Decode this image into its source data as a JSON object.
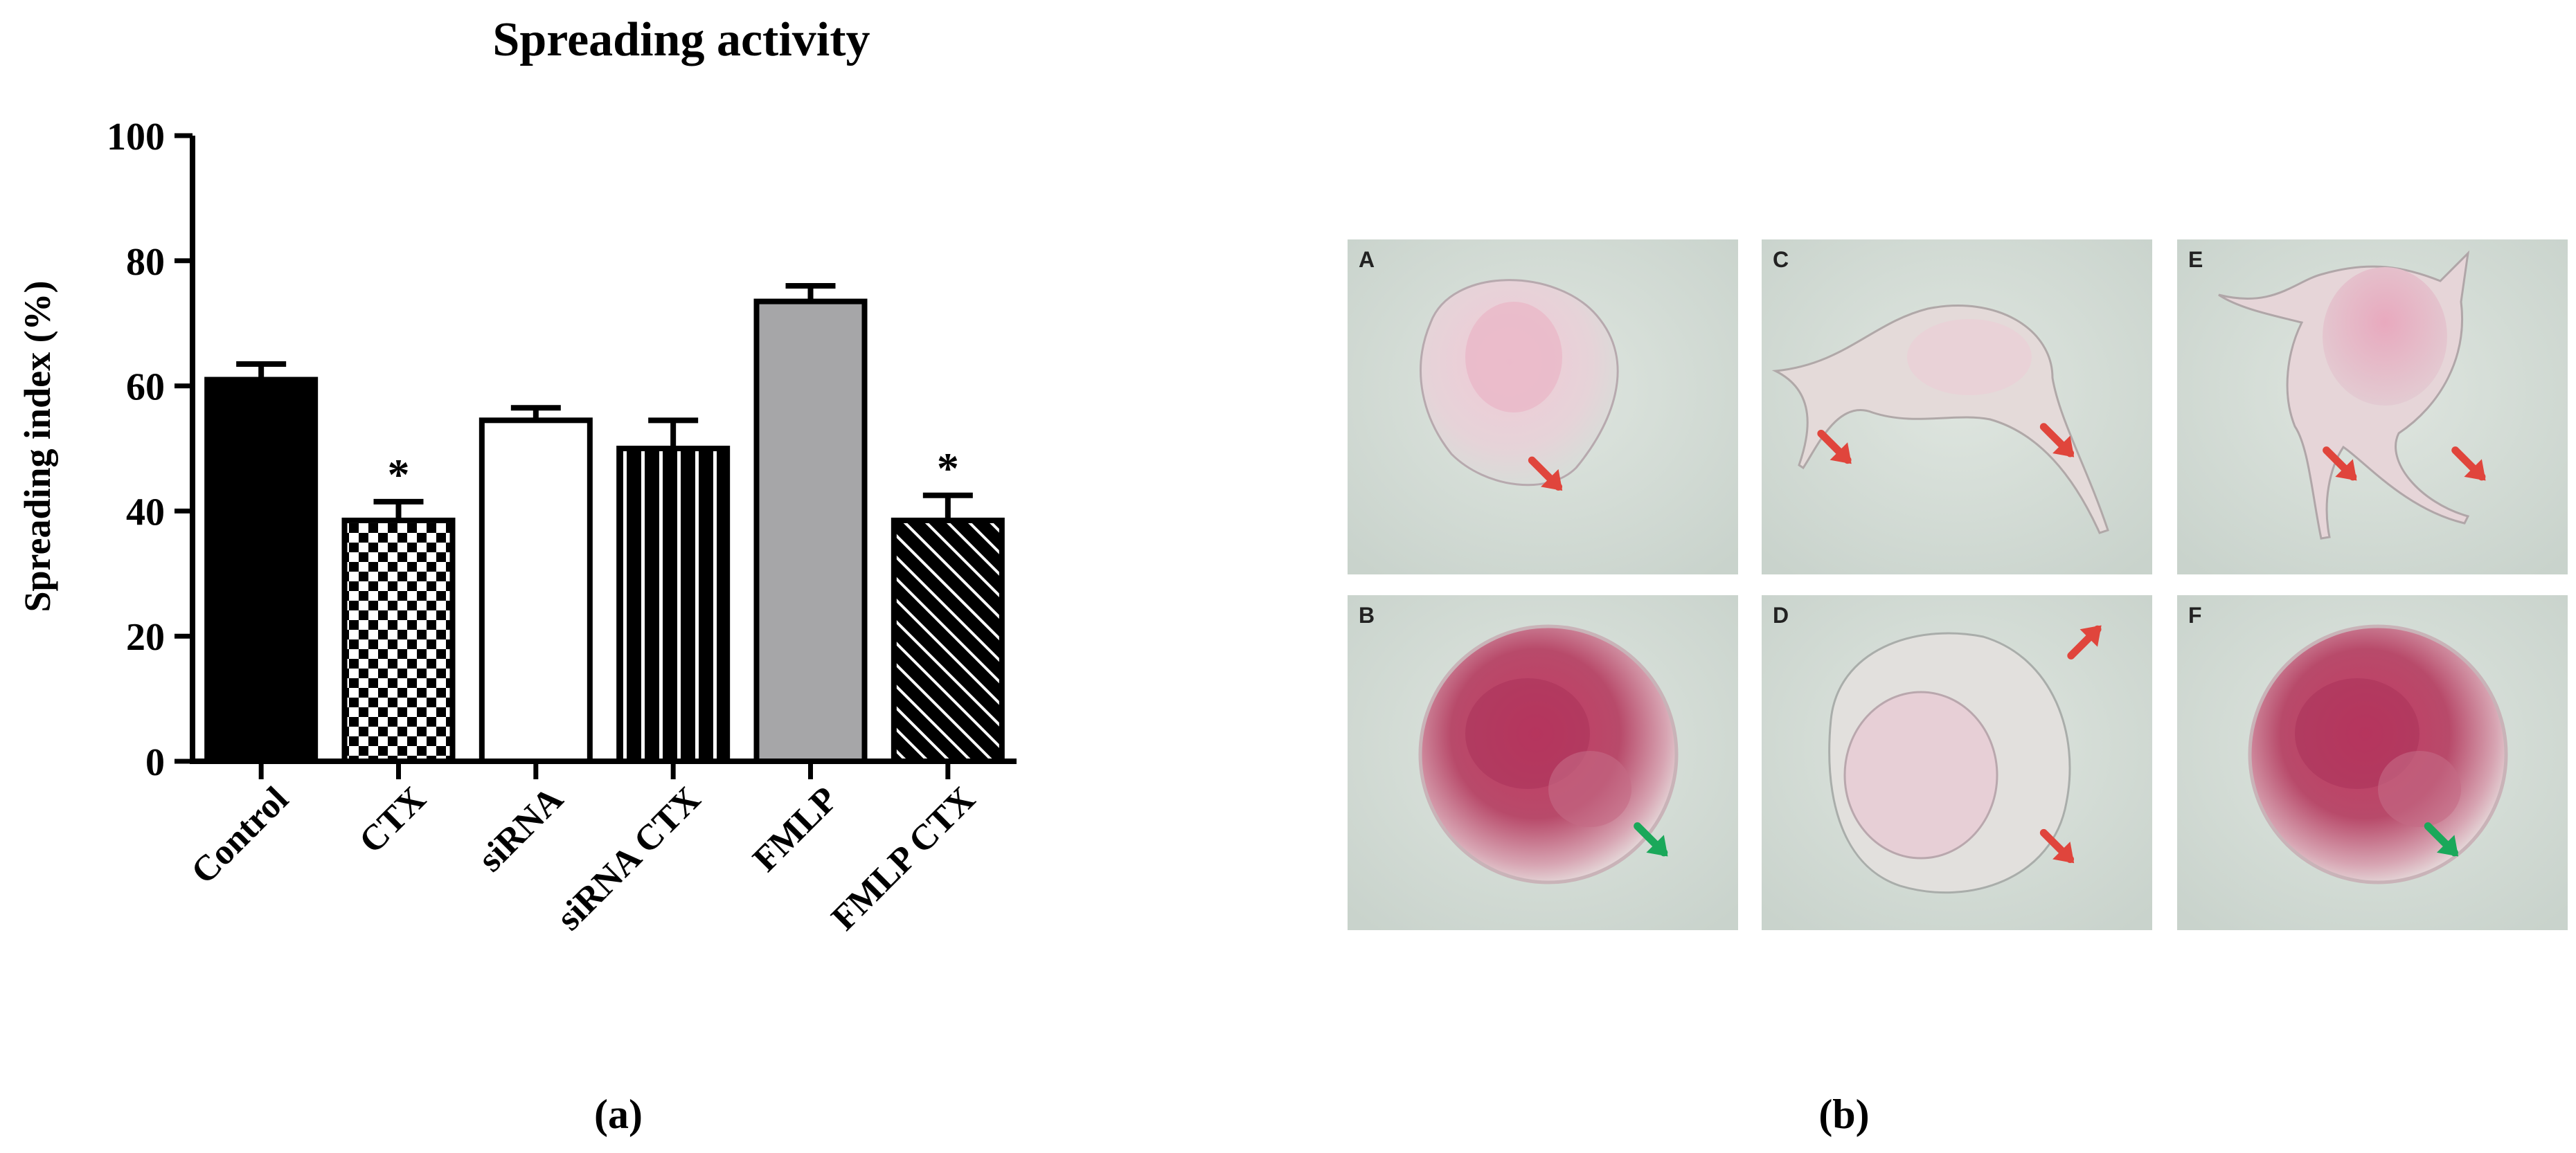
{
  "chart_data": {
    "type": "bar",
    "title": "Spreading activity",
    "ylabel": "Spreading index (%)",
    "xlabel": "",
    "ylim": [
      0,
      100
    ],
    "yticks": [
      0,
      20,
      40,
      60,
      80,
      100
    ],
    "categories": [
      "Control",
      "CTX",
      "siRNA",
      "siRNA CTX",
      "FMLP",
      "FMLP CTX"
    ],
    "values": [
      61,
      38.5,
      54.5,
      50,
      73.5,
      38.5
    ],
    "errors": [
      2.5,
      3,
      2,
      4.5,
      2.5,
      4
    ],
    "significance": [
      "",
      "*",
      "",
      "",
      "",
      "*"
    ],
    "fills": [
      "solid-black",
      "checkerboard",
      "white",
      "vertical-stripes",
      "gray",
      "diagonal-stripes"
    ],
    "colors": {
      "black": "#000000",
      "gray": "#a6a6a8",
      "white": "#ffffff"
    },
    "grid": false,
    "legend": "none"
  },
  "panel_labels": {
    "a": "(a)",
    "b": "(b)"
  },
  "micrographs": [
    {
      "letter": "A",
      "arrow_color": "#e0453c",
      "cell": "spread"
    },
    {
      "letter": "C",
      "arrow_color": "#e0453c",
      "cell": "elongated"
    },
    {
      "letter": "E",
      "arrow_color": "#e0453c",
      "cell": "branched"
    },
    {
      "letter": "B",
      "arrow_color": "#1aa85a",
      "cell": "round-dark"
    },
    {
      "letter": "D",
      "arrow_color": "#e0453c",
      "cell": "spread-pale"
    },
    {
      "letter": "F",
      "arrow_color": "#1aa85a",
      "cell": "round-dark"
    }
  ]
}
